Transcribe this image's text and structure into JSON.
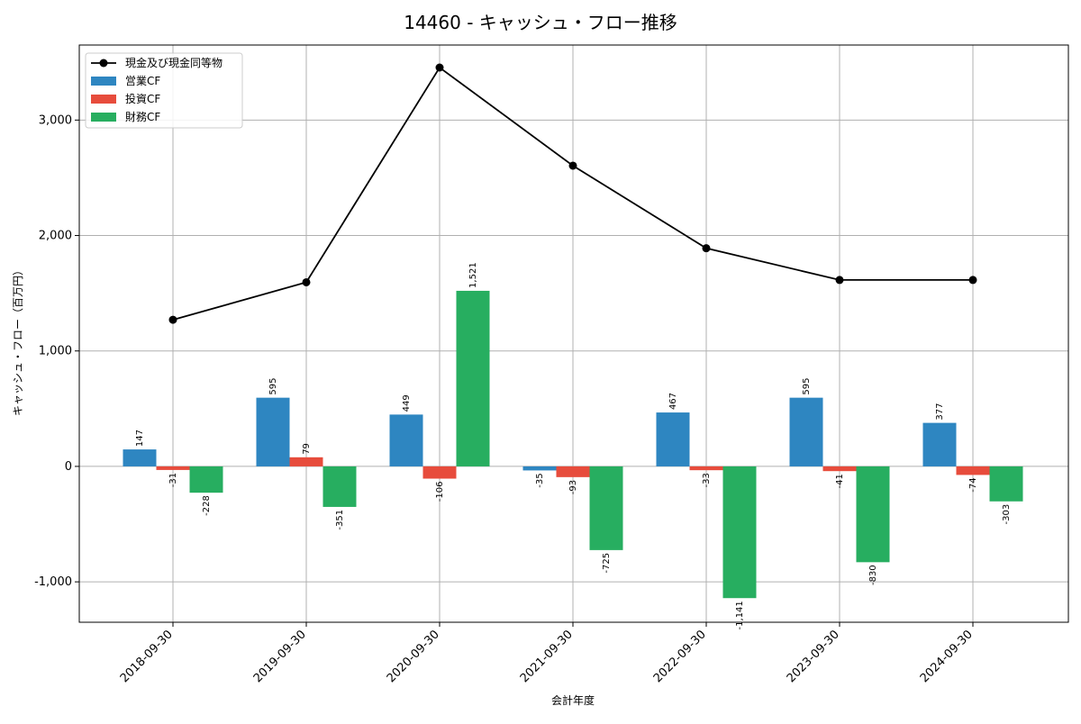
{
  "chart_data": {
    "type": "bar",
    "title": "14460 - キャッシュ・フロー推移",
    "xlabel": "会計年度",
    "ylabel": "キャッシュ・フロー（百万円）",
    "categories": [
      "2018-09-30",
      "2019-09-30",
      "2020-09-30",
      "2021-09-30",
      "2022-09-30",
      "2023-09-30",
      "2024-09-30"
    ],
    "series": [
      {
        "name": "営業CF",
        "type": "bar",
        "color": "#2e86c1",
        "values": [
          147,
          595,
          449,
          -35,
          467,
          595,
          377
        ]
      },
      {
        "name": "投資CF",
        "type": "bar",
        "color": "#e74c3c",
        "values": [
          -31,
          79,
          -106,
          -93,
          -33,
          -41,
          -74
        ]
      },
      {
        "name": "財務CF",
        "type": "bar",
        "color": "#27ae60",
        "values": [
          -228,
          -351,
          1521,
          -725,
          -1141,
          -830,
          -303
        ]
      },
      {
        "name": "現金及び現金同等物",
        "type": "line",
        "color": "#000000",
        "values": [
          1270,
          1595,
          3455,
          2605,
          1890,
          1615,
          1615
        ]
      }
    ],
    "data_labels": {
      "営業CF": [
        "147",
        "595",
        "449",
        "-35",
        "467",
        "595",
        "377"
      ],
      "投資CF": [
        "-31",
        "79",
        "-106",
        "-93",
        "-33",
        "-41",
        "-74"
      ],
      "財務CF": [
        "-228",
        "-351",
        "1,521",
        "-725",
        "-1,141",
        "-830",
        "-303"
      ]
    },
    "ylim": [
      -1350,
      3650
    ],
    "yticks": [
      -1000,
      0,
      1000,
      2000,
      3000
    ],
    "ytick_labels": [
      "-1,000",
      "0",
      "1,000",
      "2,000",
      "3,000"
    ],
    "grid": true,
    "legend_position": "top-left",
    "legend_order": [
      "現金及び現金同等物",
      "営業CF",
      "投資CF",
      "財務CF"
    ]
  }
}
